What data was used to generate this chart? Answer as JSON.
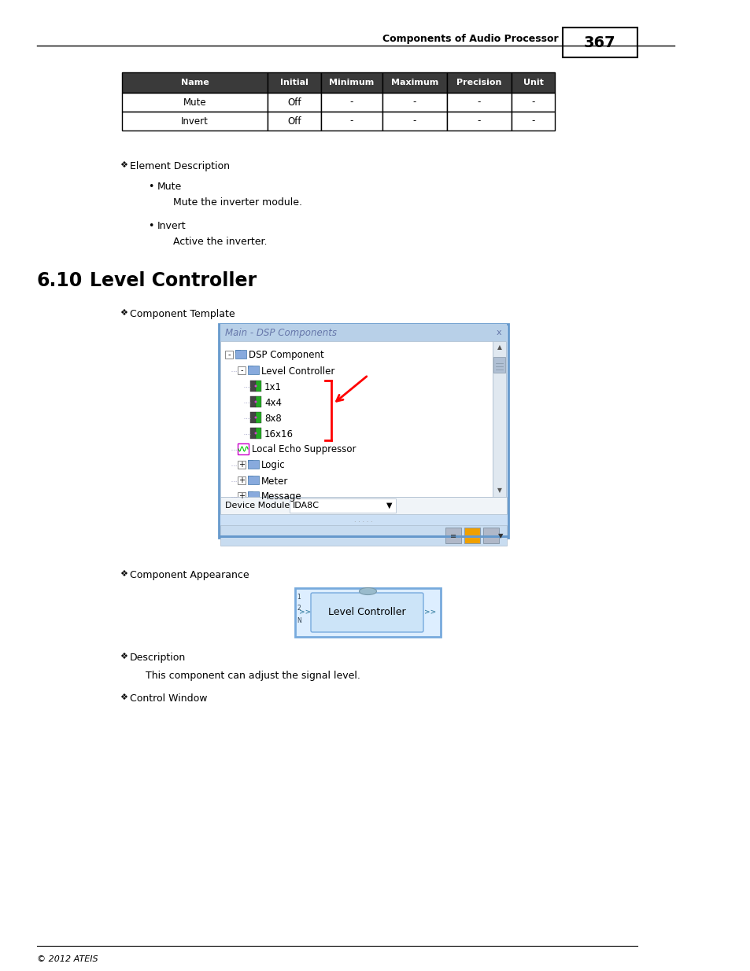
{
  "page_number": "367",
  "header_text": "Components of Audio Processor",
  "footer_text": "© 2012 ATEIS",
  "table_headers": [
    "Name",
    "Initial",
    "Minimum",
    "Maximum",
    "Precision",
    "Unit"
  ],
  "table_rows": [
    [
      "Mute",
      "Off",
      "-",
      "-",
      "-",
      "-"
    ],
    [
      "Invert",
      "Off",
      "-",
      "-",
      "-",
      "-"
    ]
  ],
  "table_header_bg": "#3a3a3a",
  "table_header_fg": "#ffffff",
  "section_title": "Element Description",
  "bullet_items": [
    {
      "label": "Mute",
      "desc": "Mute the inverter module."
    },
    {
      "label": "Invert",
      "desc": "Active the inverter."
    }
  ],
  "chapter_number": "6.10",
  "chapter_title": "Level Controller",
  "subsection1": "Component Template",
  "dsp_window_title": "Main - DSP Components",
  "dsp_tree": [
    {
      "indent": 0,
      "text": "DSP Component",
      "type": "folder_minus"
    },
    {
      "indent": 1,
      "text": "Level Controller",
      "type": "folder_minus"
    },
    {
      "indent": 2,
      "text": "1x1",
      "type": "item"
    },
    {
      "indent": 2,
      "text": "4x4",
      "type": "item"
    },
    {
      "indent": 2,
      "text": "8x8",
      "type": "item"
    },
    {
      "indent": 2,
      "text": "16x16",
      "type": "item"
    },
    {
      "indent": 1,
      "text": "Local Echo Suppressor",
      "type": "item_special"
    },
    {
      "indent": 1,
      "text": "Logic",
      "type": "folder_plus"
    },
    {
      "indent": 1,
      "text": "Meter",
      "type": "folder_plus"
    },
    {
      "indent": 1,
      "text": "Message",
      "type": "folder_plus"
    }
  ],
  "device_module_label": "Device Module",
  "device_module_value": "IDA8C",
  "subsection2": "Component Appearance",
  "appearance_label": "Level Controller",
  "subsection3": "Description",
  "description_text": "This component can adjust the signal level.",
  "subsection4": "Control Window",
  "bg_color": "#ffffff"
}
